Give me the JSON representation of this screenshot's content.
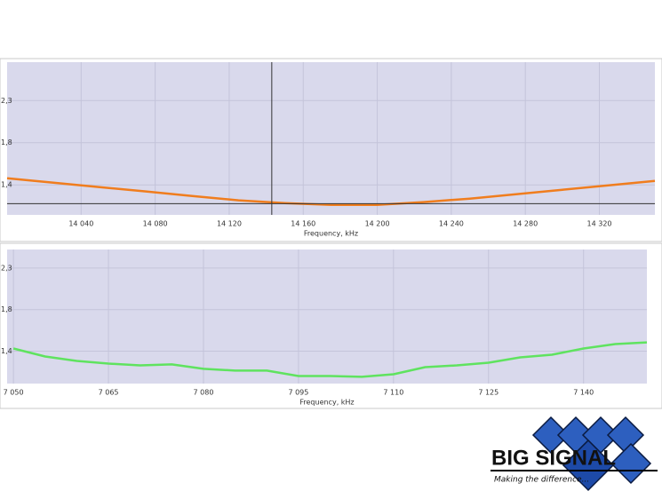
{
  "chart_data": [
    {
      "type": "line",
      "x_label": "Frequency, kHz",
      "x": [
        14000,
        14025,
        14050,
        14075,
        14100,
        14125,
        14150,
        14175,
        14200,
        14225,
        14250,
        14275,
        14300,
        14325,
        14350
      ],
      "series": [
        {
          "color": "#f07d1e",
          "values": [
            1.42,
            1.374,
            1.327,
            1.28,
            1.232,
            1.185,
            1.156,
            1.137,
            1.137,
            1.166,
            1.203,
            1.25,
            1.298,
            1.345,
            1.393
          ]
        }
      ],
      "xlim": [
        14000,
        14350
      ],
      "xticks": [
        {
          "value": 14040,
          "label": "14 040"
        },
        {
          "value": 14080,
          "label": "14 080"
        },
        {
          "value": 14120,
          "label": "14 120"
        },
        {
          "value": 14160,
          "label": "14 160"
        },
        {
          "value": 14200,
          "label": "14 200"
        },
        {
          "value": 14240,
          "label": "14 240"
        },
        {
          "value": 14280,
          "label": "14 280"
        },
        {
          "value": 14320,
          "label": "14 320"
        }
      ],
      "ylim": [
        1.03,
        2.66
      ],
      "yticks": [
        {
          "value": 2.25,
          "label": "2,3"
        },
        {
          "value": 1.8,
          "label": "1,8"
        },
        {
          "value": 1.35,
          "label": "1,4"
        }
      ],
      "cursor": {
        "x": 14143,
        "y": 1.15
      },
      "grid": true
    },
    {
      "type": "line",
      "x_label": "Frequency, kHz",
      "x": [
        7050,
        7055,
        7060,
        7065,
        7070,
        7075,
        7080,
        7085,
        7090,
        7095,
        7100,
        7105,
        7110,
        7115,
        7120,
        7125,
        7130,
        7135,
        7140,
        7145,
        7150
      ],
      "series": [
        {
          "color": "#5fe35f",
          "values": [
            1.379,
            1.293,
            1.245,
            1.216,
            1.197,
            1.207,
            1.159,
            1.14,
            1.14,
            1.082,
            1.082,
            1.073,
            1.101,
            1.178,
            1.197,
            1.226,
            1.283,
            1.312,
            1.379,
            1.427,
            1.446
          ]
        }
      ],
      "xlim": [
        7049,
        7150
      ],
      "xticks": [
        {
          "value": 7050,
          "label": "7 050"
        },
        {
          "value": 7065,
          "label": "7 065"
        },
        {
          "value": 7080,
          "label": "7 080"
        },
        {
          "value": 7095,
          "label": "7 095"
        },
        {
          "value": 7110,
          "label": "7 110"
        },
        {
          "value": 7125,
          "label": "7 125"
        },
        {
          "value": 7140,
          "label": "7 140"
        }
      ],
      "ylim": [
        1.0,
        2.45
      ],
      "yticks": [
        {
          "value": 2.25,
          "label": "2,3"
        },
        {
          "value": 1.8,
          "label": "1,8"
        },
        {
          "value": 1.35,
          "label": "1,4"
        }
      ],
      "grid": true
    }
  ],
  "logo": {
    "name": "BIG SIGNAL",
    "tagline": "Making the difference..."
  }
}
